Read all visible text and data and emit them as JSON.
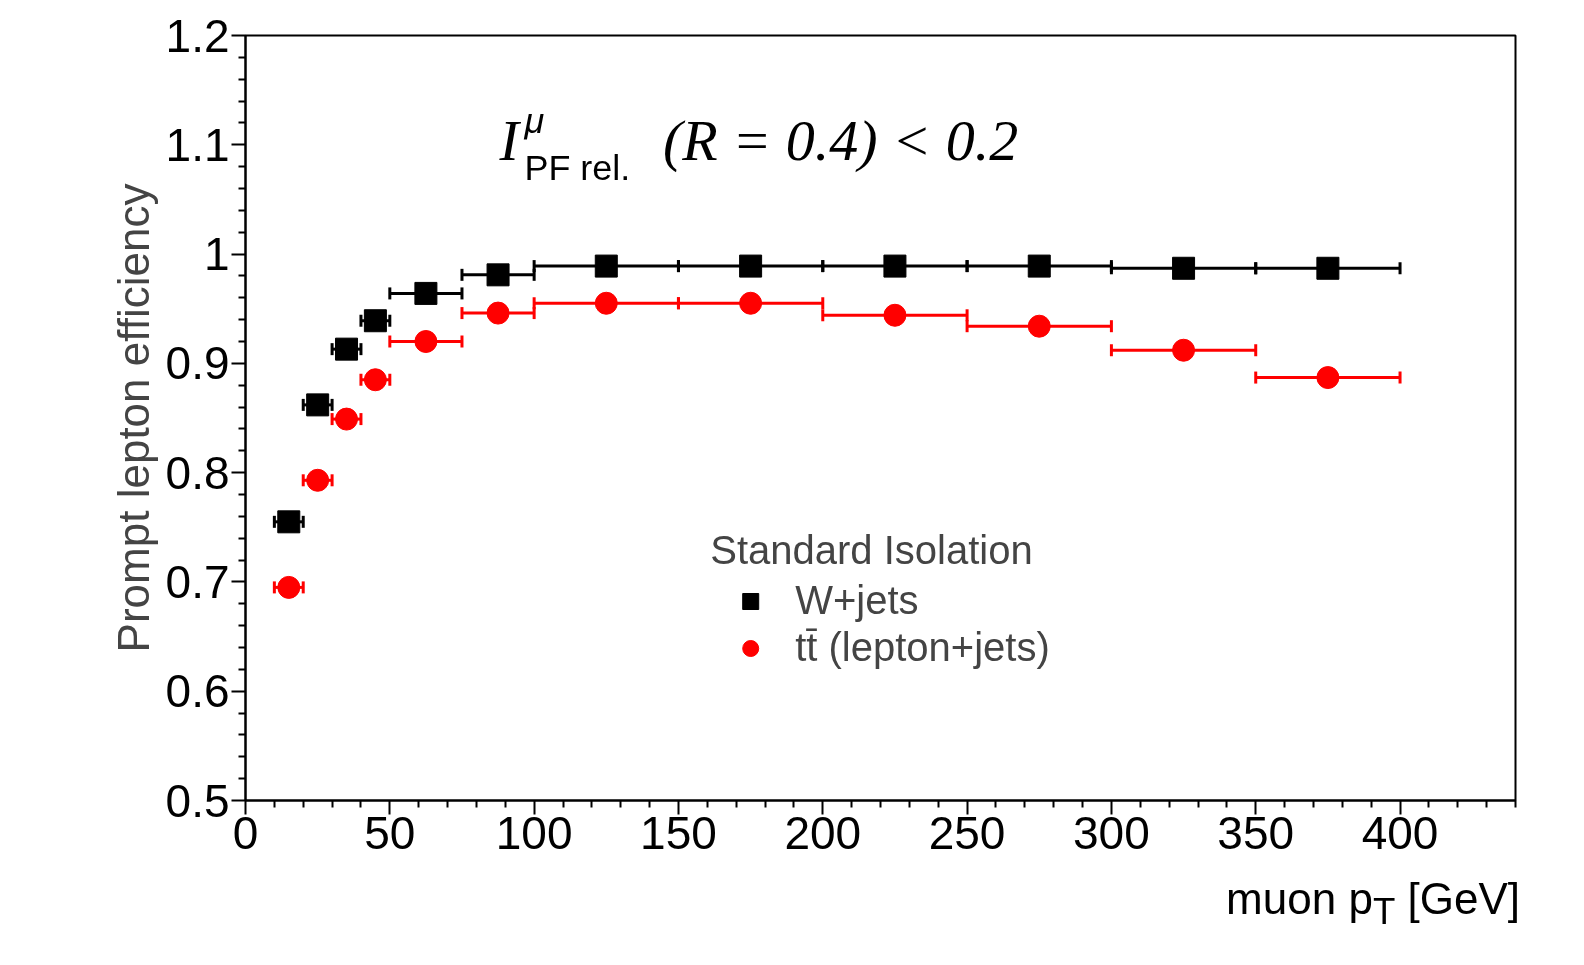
{
  "chart_data": {
    "type": "scatter",
    "ylabel": "Prompt lepton efficiency",
    "xlabel": "muon p$_{T}$ [GeV]",
    "legend_title": "Standard Isolation",
    "annotations": [
      "I$^{μ}$$_{PF rel.}$(R = 0.4) < 0.2"
    ],
    "x": [
      15,
      25,
      35,
      45,
      62.5,
      87.5,
      125,
      175,
      225,
      275,
      325,
      375
    ],
    "series": [
      {
        "name": "W+jets",
        "color": "#000000",
        "marker": "square",
        "values": [
          0.755,
          0.862,
          0.913,
          0.939,
          0.964,
          0.981,
          0.989,
          0.989,
          0.989,
          0.989,
          0.987,
          0.987
        ],
        "xerrors": [
          5,
          5,
          5,
          5,
          12.5,
          12.5,
          25,
          25,
          25,
          25,
          25,
          25
        ]
      },
      {
        "name": "tt̄ (lepton+jets)",
        "color": "#ff0000",
        "marker": "circle",
        "values": [
          0.695,
          0.793,
          0.849,
          0.885,
          0.92,
          0.946,
          0.955,
          0.955,
          0.944,
          0.934,
          0.912,
          0.887
        ],
        "xerrors": [
          5,
          5,
          5,
          5,
          12.5,
          12.5,
          25,
          25,
          25,
          25,
          25,
          25
        ]
      }
    ],
    "xlim": [
      0,
      440
    ],
    "ylim": [
      0.5,
      1.2
    ],
    "xticks": [
      0,
      50,
      100,
      150,
      200,
      250,
      300,
      350,
      400
    ],
    "yticks": [
      0.5,
      0.6,
      0.7,
      0.8,
      0.9,
      1,
      1.1,
      1.2
    ],
    "grid": false,
    "legend": "bottom"
  }
}
